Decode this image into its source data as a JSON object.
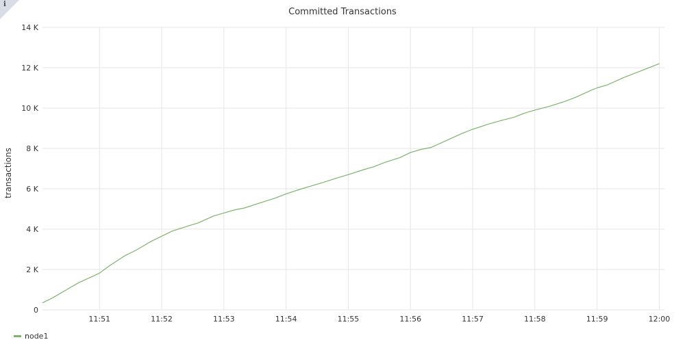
{
  "panel": {
    "info_glyph": "i",
    "info_icon": "info-icon"
  },
  "chart_data": {
    "type": "line",
    "title": "Committed Transactions",
    "ylabel": "transactions",
    "xlabel": "",
    "ylim": [
      0,
      14000
    ],
    "xlim": [
      "11:50:05",
      "12:00:05"
    ],
    "y_ticks": [
      {
        "value": 0,
        "label": "0"
      },
      {
        "value": 2000,
        "label": "2 K"
      },
      {
        "value": 4000,
        "label": "4 K"
      },
      {
        "value": 6000,
        "label": "6 K"
      },
      {
        "value": 8000,
        "label": "8 K"
      },
      {
        "value": 10000,
        "label": "10 K"
      },
      {
        "value": 12000,
        "label": "12 K"
      },
      {
        "value": 14000,
        "label": "14 K"
      }
    ],
    "x_ticks": [
      {
        "value": "11:51:00",
        "label": "11:51"
      },
      {
        "value": "11:52:00",
        "label": "11:52"
      },
      {
        "value": "11:53:00",
        "label": "11:53"
      },
      {
        "value": "11:54:00",
        "label": "11:54"
      },
      {
        "value": "11:55:00",
        "label": "11:55"
      },
      {
        "value": "11:56:00",
        "label": "11:56"
      },
      {
        "value": "11:57:00",
        "label": "11:57"
      },
      {
        "value": "11:58:00",
        "label": "11:58"
      },
      {
        "value": "11:59:00",
        "label": "11:59"
      },
      {
        "value": "12:00:00",
        "label": "12:00"
      }
    ],
    "grid": true,
    "legend_position": "bottom-left",
    "series": [
      {
        "name": "node1",
        "color": "#7eb26d",
        "x": [
          "11:50:05",
          "11:50:15",
          "11:50:30",
          "11:50:40",
          "11:50:55",
          "11:51:00",
          "11:51:10",
          "11:51:25",
          "11:51:35",
          "11:51:45",
          "11:51:50",
          "11:52:00",
          "11:52:10",
          "11:52:25",
          "11:52:35",
          "11:52:50",
          "11:53:00",
          "11:53:10",
          "11:53:20",
          "11:53:35",
          "11:53:50",
          "11:54:00",
          "11:54:15",
          "11:54:25",
          "11:54:35",
          "11:54:50",
          "11:55:00",
          "11:55:15",
          "11:55:25",
          "11:55:35",
          "11:55:50",
          "11:56:00",
          "11:56:10",
          "11:56:20",
          "11:56:35",
          "11:56:50",
          "11:57:00",
          "11:57:15",
          "11:57:25",
          "11:57:40",
          "11:57:50",
          "11:58:00",
          "11:58:15",
          "11:58:30",
          "11:58:40",
          "11:58:55",
          "11:59:00",
          "11:59:10",
          "11:59:25",
          "11:59:40",
          "11:59:55",
          "12:00:00"
        ],
        "values": [
          350,
          600,
          1050,
          1350,
          1700,
          1820,
          2200,
          2700,
          2950,
          3250,
          3400,
          3650,
          3900,
          4150,
          4300,
          4650,
          4800,
          4950,
          5050,
          5300,
          5550,
          5750,
          6000,
          6150,
          6300,
          6550,
          6700,
          6950,
          7100,
          7300,
          7550,
          7800,
          7950,
          8050,
          8400,
          8750,
          8950,
          9200,
          9350,
          9550,
          9750,
          9900,
          10100,
          10350,
          10550,
          10900,
          11000,
          11150,
          11500,
          11800,
          12100,
          12200
        ]
      }
    ]
  }
}
